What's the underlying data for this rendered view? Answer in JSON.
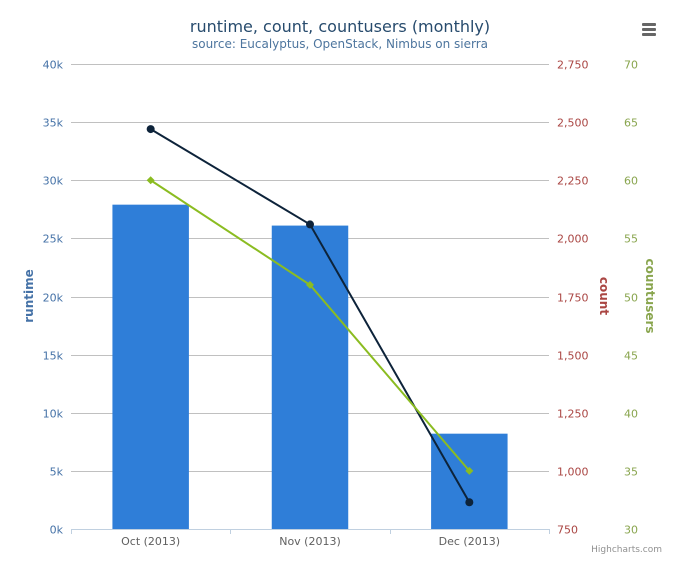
{
  "chart_data": {
    "type": "bar",
    "title": "runtime, count, countusers (monthly)",
    "subtitle": "source: Eucalyptus, OpenStack, Nimbus on sierra",
    "categories": [
      "Oct (2013)",
      "Nov (2013)",
      "Dec (2013)"
    ],
    "series": [
      {
        "name": "runtime",
        "type": "bar",
        "axis": "left",
        "color": "#2f7ed8",
        "values": [
          27900,
          26100,
          8200
        ]
      },
      {
        "name": "count",
        "type": "line",
        "axis": "right-1",
        "color": "#0d233a",
        "marker": "circle",
        "values": [
          2470,
          2060,
          865
        ]
      },
      {
        "name": "countusers",
        "type": "line",
        "axis": "right-2",
        "color": "#8bbc21",
        "marker": "diamond",
        "values": [
          60,
          51,
          35
        ]
      }
    ],
    "y_axes": [
      {
        "id": "left",
        "title": "runtime",
        "color": "#4572A7",
        "range": [
          0,
          40000
        ],
        "ticks": [
          "0k",
          "5k",
          "10k",
          "15k",
          "20k",
          "25k",
          "30k",
          "35k",
          "40k"
        ]
      },
      {
        "id": "right-1",
        "title": "count",
        "color": "#AA4643",
        "range": [
          750,
          2750
        ],
        "ticks": [
          "750",
          "1,000",
          "1,250",
          "1,500",
          "1,750",
          "2,000",
          "2,250",
          "2,500",
          "2,750"
        ]
      },
      {
        "id": "right-2",
        "title": "countusers",
        "color": "#89A54E",
        "range": [
          30,
          70
        ],
        "ticks": [
          "30",
          "35",
          "40",
          "45",
          "50",
          "55",
          "60",
          "65",
          "70"
        ]
      }
    ],
    "grid": true,
    "credits": "Highcharts.com"
  },
  "icons": {
    "export_menu": "hamburger-menu-icon"
  }
}
